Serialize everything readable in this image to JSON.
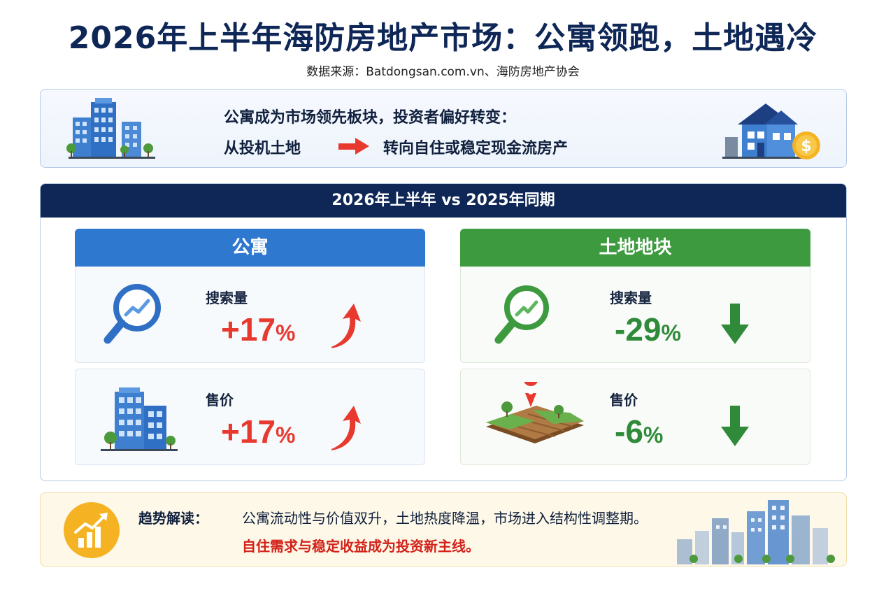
{
  "header": {
    "title": "2026年上半年海防房地产市场：公寓领跑，土地遇冷",
    "source": "数据来源：Batdongsan.com.vn、海防房地产协会"
  },
  "insight": {
    "line1": "公寓成为市场领先板块，投资者偏好转变：",
    "from": "从投机土地",
    "to": "转向自住或稳定现金流房产",
    "arrow_color": "#e8392f"
  },
  "comparison": {
    "heading": "2026年上半年 vs 2025年同期",
    "apartment": {
      "title": "公寓",
      "color": "#2f78cf",
      "metrics": [
        {
          "label": "搜索量",
          "value": "+17",
          "unit": "%",
          "trend": "up",
          "icon": "magnifier-chart-icon"
        },
        {
          "label": "售价",
          "value": "+17",
          "unit": "%",
          "trend": "up",
          "icon": "apartment-building-icon"
        }
      ]
    },
    "land": {
      "title": "土地地块",
      "color": "#3d9a3f",
      "metrics": [
        {
          "label": "搜索量",
          "value": "-29",
          "unit": "%",
          "trend": "down",
          "icon": "magnifier-chart-icon"
        },
        {
          "label": "售价",
          "value": "-6",
          "unit": "%",
          "trend": "down",
          "icon": "land-plot-pin-icon"
        }
      ]
    }
  },
  "trend": {
    "label": "趋势解读：",
    "line1": "公寓流动性与价值双升，土地热度降温，市场进入结构性调整期。",
    "line2": "自住需求与稳定收益成为投资新主线。",
    "highlight_color": "#d2221a"
  }
}
